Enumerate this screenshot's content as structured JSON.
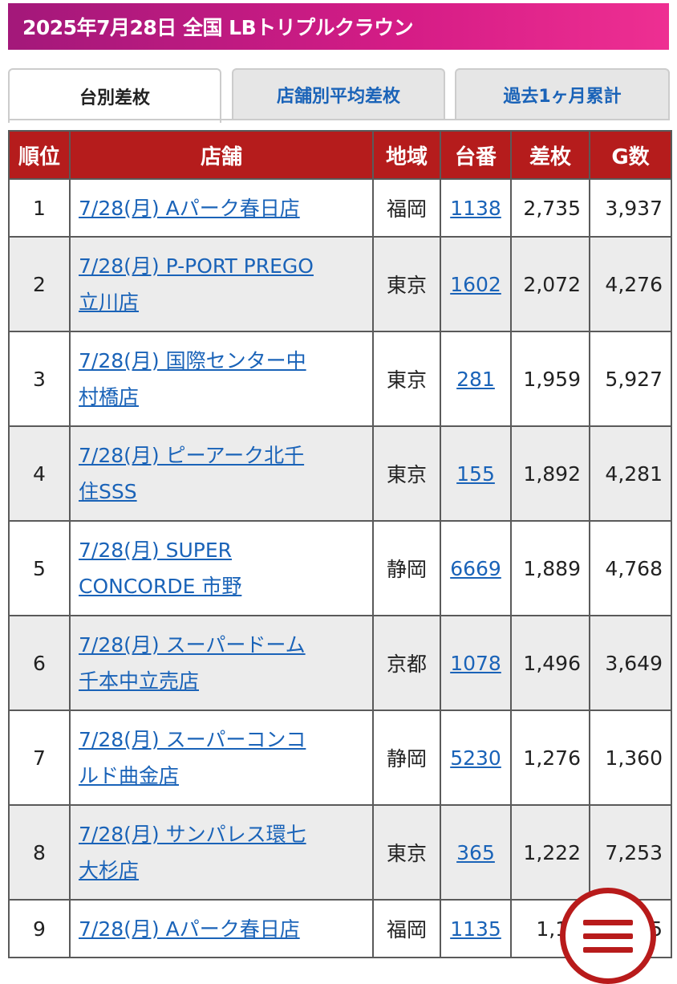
{
  "title": "2025年7月28日 全国 LBトリプルクラウン",
  "tabs": [
    {
      "label": "台別差枚",
      "active": true
    },
    {
      "label": "店舗別平均差枚",
      "active": false
    },
    {
      "label": "過去1ヶ月累計",
      "active": false
    }
  ],
  "table": {
    "headers": [
      "順位",
      "店舗",
      "地域",
      "台番",
      "差枚",
      "G数"
    ],
    "rows": [
      {
        "rank": "1",
        "shop_line1": "7/28(月) Aパーク春日店",
        "shop_line2": "",
        "region": "福岡",
        "machine": "1138",
        "diff": "2,735",
        "games": "3,937"
      },
      {
        "rank": "2",
        "shop_line1": "7/28(月) P-PORT PREGO",
        "shop_line2": "立川店",
        "region": "東京",
        "machine": "1602",
        "diff": "2,072",
        "games": "4,276"
      },
      {
        "rank": "3",
        "shop_line1": "7/28(月) 国際センター中",
        "shop_line2": "村橋店",
        "region": "東京",
        "machine": "281",
        "diff": "1,959",
        "games": "5,927"
      },
      {
        "rank": "4",
        "shop_line1": "7/28(月) ピーアーク北千",
        "shop_line2": "住SSS",
        "region": "東京",
        "machine": "155",
        "diff": "1,892",
        "games": "4,281"
      },
      {
        "rank": "5",
        "shop_line1": "7/28(月) SUPER",
        "shop_line2": "CONCORDE 市野",
        "region": "静岡",
        "machine": "6669",
        "diff": "1,889",
        "games": "4,768"
      },
      {
        "rank": "6",
        "shop_line1": "7/28(月) スーパードーム",
        "shop_line2": "千本中立売店",
        "region": "京都",
        "machine": "1078",
        "diff": "1,496",
        "games": "3,649"
      },
      {
        "rank": "7",
        "shop_line1": "7/28(月) スーパーコンコ",
        "shop_line2": "ルド曲金店",
        "region": "静岡",
        "machine": "5230",
        "diff": "1,276",
        "games": "1,360"
      },
      {
        "rank": "8",
        "shop_line1": "7/28(月) サンパレス環七",
        "shop_line2": "大杉店",
        "region": "東京",
        "machine": "365",
        "diff": "1,222",
        "games": "7,253"
      },
      {
        "rank": "9",
        "shop_line1": "7/28(月) Aパーク春日店",
        "shop_line2": "",
        "region": "福岡",
        "machine": "1135",
        "diff": "1,18",
        "games": "5"
      }
    ]
  },
  "menu_button": {
    "icon": "hamburger-menu-icon"
  },
  "colors": {
    "title_gradient_start": "#a3187a",
    "title_gradient_end": "#ee2f92",
    "header_red": "#b51c1c",
    "link_blue": "#1a63b8",
    "menu_red": "#b81b1b"
  }
}
